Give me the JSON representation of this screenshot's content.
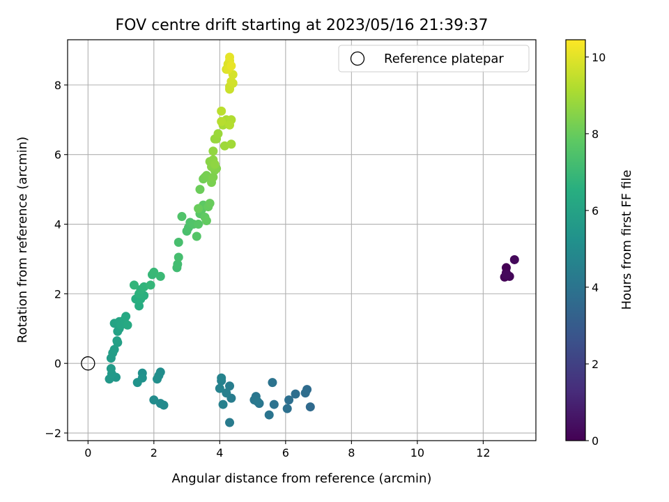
{
  "chart_data": {
    "type": "scatter",
    "title": "FOV centre drift starting at 2023/05/16 21:39:37",
    "xlabel": "Angular distance from reference (arcmin)",
    "ylabel": "Rotation from reference (arcmin)",
    "xlim": [
      -0.62,
      13.6
    ],
    "ylim": [
      -2.22,
      9.3
    ],
    "xticks": [
      0,
      2,
      4,
      6,
      8,
      10,
      12
    ],
    "yticks": [
      -2,
      0,
      2,
      4,
      6,
      8
    ],
    "grid": true,
    "legend": {
      "position": "top-right",
      "entries": [
        "Reference platepar"
      ]
    },
    "reference_point": {
      "x": 0,
      "y": 0,
      "label": "Reference platepar",
      "marker": "hollow-circle"
    },
    "colorbar": {
      "label": "Hours from first FF file",
      "colormap": "viridis",
      "range": [
        0,
        10.45
      ],
      "ticks": [
        0,
        2,
        4,
        6,
        8,
        10
      ]
    },
    "points": [
      {
        "x": 12.7,
        "y": 2.75,
        "c": 0.0
      },
      {
        "x": 12.7,
        "y": 2.6,
        "c": 0.05
      },
      {
        "x": 12.65,
        "y": 2.48,
        "c": 0.1
      },
      {
        "x": 12.8,
        "y": 2.5,
        "c": 0.15
      },
      {
        "x": 12.95,
        "y": 2.98,
        "c": 0.2
      },
      {
        "x": 12.7,
        "y": 2.55,
        "c": 0.25
      },
      {
        "x": 6.75,
        "y": -1.25,
        "c": 3.6
      },
      {
        "x": 6.65,
        "y": -0.75,
        "c": 3.65
      },
      {
        "x": 6.6,
        "y": -0.85,
        "c": 3.7
      },
      {
        "x": 6.3,
        "y": -0.88,
        "c": 3.75
      },
      {
        "x": 6.1,
        "y": -1.05,
        "c": 3.8
      },
      {
        "x": 6.05,
        "y": -1.3,
        "c": 3.85
      },
      {
        "x": 5.65,
        "y": -1.18,
        "c": 3.9
      },
      {
        "x": 5.6,
        "y": -0.55,
        "c": 3.95
      },
      {
        "x": 5.5,
        "y": -1.48,
        "c": 4.0
      },
      {
        "x": 5.2,
        "y": -1.15,
        "c": 4.05
      },
      {
        "x": 5.1,
        "y": -0.95,
        "c": 4.1
      },
      {
        "x": 5.05,
        "y": -1.05,
        "c": 4.15
      },
      {
        "x": 5.15,
        "y": -1.1,
        "c": 4.2
      },
      {
        "x": 4.3,
        "y": -1.7,
        "c": 4.3
      },
      {
        "x": 4.35,
        "y": -1.0,
        "c": 4.35
      },
      {
        "x": 4.3,
        "y": -0.65,
        "c": 4.4
      },
      {
        "x": 4.2,
        "y": -0.85,
        "c": 4.45
      },
      {
        "x": 4.1,
        "y": -1.18,
        "c": 4.5
      },
      {
        "x": 4.05,
        "y": -0.5,
        "c": 4.55
      },
      {
        "x": 4.0,
        "y": -0.72,
        "c": 4.6
      },
      {
        "x": 4.05,
        "y": -0.42,
        "c": 4.65
      },
      {
        "x": 2.3,
        "y": -1.2,
        "c": 4.9
      },
      {
        "x": 2.2,
        "y": -1.15,
        "c": 4.95
      },
      {
        "x": 2.0,
        "y": -1.05,
        "c": 5.0
      },
      {
        "x": 2.2,
        "y": -0.25,
        "c": 5.05
      },
      {
        "x": 2.15,
        "y": -0.35,
        "c": 5.1
      },
      {
        "x": 2.1,
        "y": -0.45,
        "c": 5.15
      },
      {
        "x": 1.65,
        "y": -0.28,
        "c": 5.2
      },
      {
        "x": 1.65,
        "y": -0.42,
        "c": 5.25
      },
      {
        "x": 1.5,
        "y": -0.55,
        "c": 5.3
      },
      {
        "x": 0.85,
        "y": -0.4,
        "c": 5.5
      },
      {
        "x": 0.65,
        "y": -0.45,
        "c": 5.55
      },
      {
        "x": 0.72,
        "y": -0.3,
        "c": 5.6
      },
      {
        "x": 0.7,
        "y": -0.15,
        "c": 5.65
      },
      {
        "x": 0.7,
        "y": 0.15,
        "c": 5.7
      },
      {
        "x": 0.75,
        "y": 0.3,
        "c": 5.75
      },
      {
        "x": 0.8,
        "y": 0.4,
        "c": 5.8
      },
      {
        "x": 0.9,
        "y": 0.6,
        "c": 5.85
      },
      {
        "x": 0.88,
        "y": 0.65,
        "c": 5.9
      },
      {
        "x": 0.9,
        "y": 0.92,
        "c": 5.95
      },
      {
        "x": 0.95,
        "y": 1.0,
        "c": 6.0
      },
      {
        "x": 0.8,
        "y": 1.15,
        "c": 6.05
      },
      {
        "x": 0.95,
        "y": 1.2,
        "c": 6.1
      },
      {
        "x": 1.0,
        "y": 1.1,
        "c": 6.15
      },
      {
        "x": 1.1,
        "y": 1.25,
        "c": 6.2
      },
      {
        "x": 1.15,
        "y": 1.35,
        "c": 6.25
      },
      {
        "x": 1.2,
        "y": 1.1,
        "c": 6.3
      },
      {
        "x": 1.55,
        "y": 1.65,
        "c": 6.45
      },
      {
        "x": 1.45,
        "y": 1.85,
        "c": 6.5
      },
      {
        "x": 1.6,
        "y": 1.85,
        "c": 6.55
      },
      {
        "x": 1.7,
        "y": 1.95,
        "c": 6.6
      },
      {
        "x": 1.55,
        "y": 2.0,
        "c": 6.65
      },
      {
        "x": 1.6,
        "y": 2.12,
        "c": 6.7
      },
      {
        "x": 1.7,
        "y": 2.2,
        "c": 6.75
      },
      {
        "x": 1.4,
        "y": 2.25,
        "c": 6.8
      },
      {
        "x": 1.9,
        "y": 2.25,
        "c": 6.85
      },
      {
        "x": 1.95,
        "y": 2.55,
        "c": 6.9
      },
      {
        "x": 2.0,
        "y": 2.62,
        "c": 6.95
      },
      {
        "x": 2.2,
        "y": 2.5,
        "c": 7.0
      },
      {
        "x": 2.7,
        "y": 2.75,
        "c": 7.15
      },
      {
        "x": 2.72,
        "y": 2.85,
        "c": 7.2
      },
      {
        "x": 2.75,
        "y": 3.05,
        "c": 7.25
      },
      {
        "x": 2.75,
        "y": 3.48,
        "c": 7.3
      },
      {
        "x": 3.0,
        "y": 3.8,
        "c": 7.35
      },
      {
        "x": 3.05,
        "y": 3.9,
        "c": 7.4
      },
      {
        "x": 3.1,
        "y": 4.05,
        "c": 7.45
      },
      {
        "x": 2.85,
        "y": 4.22,
        "c": 7.5
      },
      {
        "x": 3.2,
        "y": 4.0,
        "c": 7.55
      },
      {
        "x": 3.3,
        "y": 3.65,
        "c": 7.6
      },
      {
        "x": 3.35,
        "y": 4.0,
        "c": 7.65
      },
      {
        "x": 3.4,
        "y": 4.3,
        "c": 7.7
      },
      {
        "x": 3.45,
        "y": 4.42,
        "c": 7.75
      },
      {
        "x": 3.5,
        "y": 4.55,
        "c": 7.8
      },
      {
        "x": 3.55,
        "y": 4.2,
        "c": 7.85
      },
      {
        "x": 3.6,
        "y": 4.1,
        "c": 7.9
      },
      {
        "x": 3.65,
        "y": 4.5,
        "c": 7.95
      },
      {
        "x": 3.7,
        "y": 4.6,
        "c": 8.0
      },
      {
        "x": 3.35,
        "y": 4.45,
        "c": 8.02
      },
      {
        "x": 3.4,
        "y": 5.0,
        "c": 8.05
      },
      {
        "x": 3.5,
        "y": 5.3,
        "c": 8.15
      },
      {
        "x": 3.55,
        "y": 5.35,
        "c": 8.2
      },
      {
        "x": 3.6,
        "y": 5.4,
        "c": 8.25
      },
      {
        "x": 3.75,
        "y": 5.2,
        "c": 8.3
      },
      {
        "x": 3.8,
        "y": 5.35,
        "c": 8.35
      },
      {
        "x": 3.85,
        "y": 5.55,
        "c": 8.4
      },
      {
        "x": 3.9,
        "y": 5.6,
        "c": 8.45
      },
      {
        "x": 3.75,
        "y": 5.65,
        "c": 8.5
      },
      {
        "x": 3.7,
        "y": 5.8,
        "c": 8.55
      },
      {
        "x": 3.8,
        "y": 5.85,
        "c": 8.6
      },
      {
        "x": 3.85,
        "y": 5.72,
        "c": 8.65
      },
      {
        "x": 3.8,
        "y": 6.1,
        "c": 8.7
      },
      {
        "x": 3.85,
        "y": 6.45,
        "c": 8.75
      },
      {
        "x": 3.9,
        "y": 6.45,
        "c": 8.8
      },
      {
        "x": 3.95,
        "y": 6.6,
        "c": 8.85
      },
      {
        "x": 4.15,
        "y": 6.25,
        "c": 8.9
      },
      {
        "x": 4.35,
        "y": 6.3,
        "c": 8.95
      },
      {
        "x": 4.1,
        "y": 6.85,
        "c": 9.05
      },
      {
        "x": 4.2,
        "y": 7.0,
        "c": 9.1
      },
      {
        "x": 4.25,
        "y": 6.95,
        "c": 9.15
      },
      {
        "x": 4.35,
        "y": 7.0,
        "c": 9.2
      },
      {
        "x": 4.3,
        "y": 6.85,
        "c": 9.25
      },
      {
        "x": 4.05,
        "y": 6.95,
        "c": 9.3
      },
      {
        "x": 4.05,
        "y": 7.25,
        "c": 9.35
      },
      {
        "x": 4.3,
        "y": 7.88,
        "c": 9.6
      },
      {
        "x": 4.3,
        "y": 7.95,
        "c": 9.65
      },
      {
        "x": 4.4,
        "y": 8.05,
        "c": 9.7
      },
      {
        "x": 4.35,
        "y": 8.1,
        "c": 9.75
      },
      {
        "x": 4.4,
        "y": 8.3,
        "c": 9.8
      },
      {
        "x": 4.2,
        "y": 8.45,
        "c": 9.85
      },
      {
        "x": 4.25,
        "y": 8.6,
        "c": 9.9
      },
      {
        "x": 4.3,
        "y": 8.7,
        "c": 9.95
      },
      {
        "x": 4.25,
        "y": 8.45,
        "c": 10.0
      },
      {
        "x": 4.3,
        "y": 8.8,
        "c": 10.05
      },
      {
        "x": 4.35,
        "y": 8.55,
        "c": 10.1
      }
    ]
  }
}
